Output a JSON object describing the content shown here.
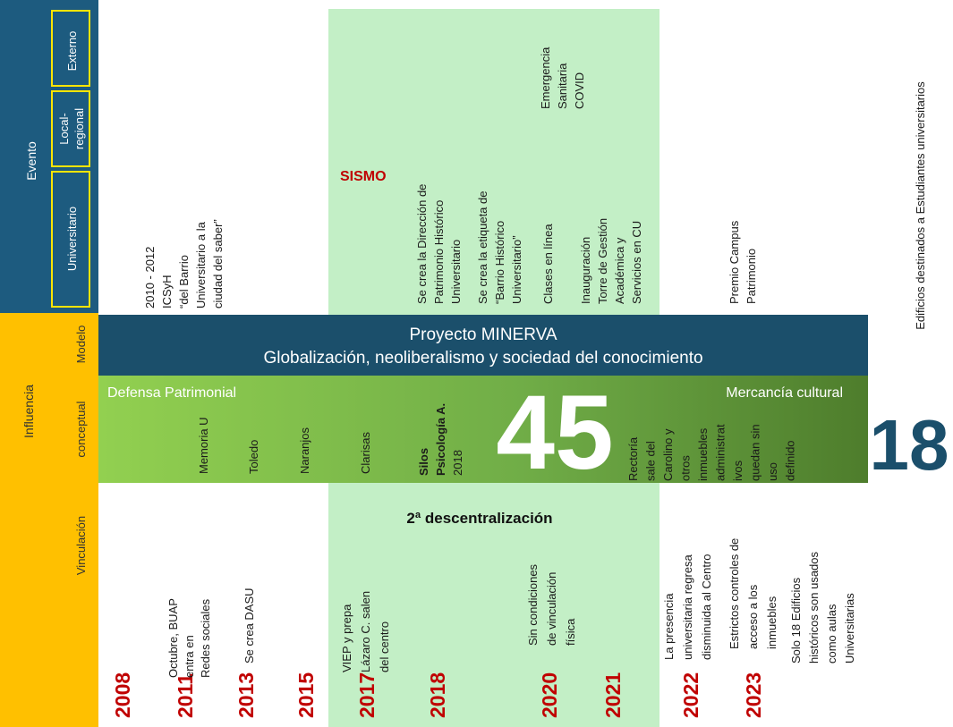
{
  "legend": {
    "event_label": "Evento",
    "event_types": {
      "universitario": "Universitario",
      "local_regional": [
        "Local-",
        "regional"
      ],
      "externo": "Externo"
    },
    "influence_label": "Influencia",
    "influence_types": [
      "Modelo",
      "conceptual",
      "Vinculación"
    ]
  },
  "timeline": {
    "years": [
      "2008",
      "2011",
      "2013",
      "2015",
      "2017",
      "2018",
      "2020",
      "2021",
      "2022",
      "2023"
    ]
  },
  "top_events": [
    [
      "2010 - 2012",
      "ICSyH",
      "“del Barrio",
      "Universitario a la",
      "ciudad del saber”"
    ],
    [
      "Se crea la Dirección de",
      "Patrimonio Histórico",
      "Universitario"
    ],
    [
      "Se crea la etiqueta de",
      "“Barrio Histórico",
      "Universitario”"
    ],
    [
      "Clases en línea"
    ],
    [
      "Emergencia",
      "Sanitaria",
      "COVID"
    ],
    [
      "Inauguración",
      "Torre de Gestión",
      "Académica y",
      "Servicios en CU"
    ],
    [
      "Premio Campus",
      "Patrimonio"
    ]
  ],
  "band": {
    "sismo": "SISMO",
    "descentralizacion": "2ª descentralización"
  },
  "model_bar": {
    "line1": "Proyecto MINERVA",
    "line2": "Globalización, neoliberalismo y sociedad del conocimiento"
  },
  "concept_bar": {
    "left": "Defensa Patrimonial",
    "right": "Mercancía cultural",
    "count": 45,
    "buildings": [
      [
        "Memoria U"
      ],
      [
        "Toledo"
      ],
      [
        "Naranjos"
      ],
      [
        "Clarisas"
      ],
      [
        "Silos",
        "Psicología A.",
        "2018"
      ],
      [
        "Rectoría",
        "sale del",
        "Carolino y",
        "otros",
        "inmuebles",
        "administrat",
        "ivos",
        "quedan sin",
        "uso",
        "definido"
      ]
    ]
  },
  "bottom_events": [
    [
      "Octubre, BUAP",
      "entra en",
      "Redes  sociales"
    ],
    [
      "Se crea DASU"
    ],
    [
      "VIEP y prepa",
      "Lázaro C. salen",
      "del centro"
    ],
    [
      "Sin condiciones",
      "de vinculación",
      "física"
    ],
    [
      "La presencia",
      "universitaria regresa",
      "disminuida al Centro"
    ],
    [
      "Estrictos controles de",
      "acceso a los",
      "inmuebles"
    ],
    [
      "Solo 18 Edificios",
      "históricos son usados",
      "como aulas",
      "Universitarias"
    ]
  ],
  "result": {
    "count": 18,
    "caption": "Edificios destinados a Estudiantes universitarios"
  }
}
